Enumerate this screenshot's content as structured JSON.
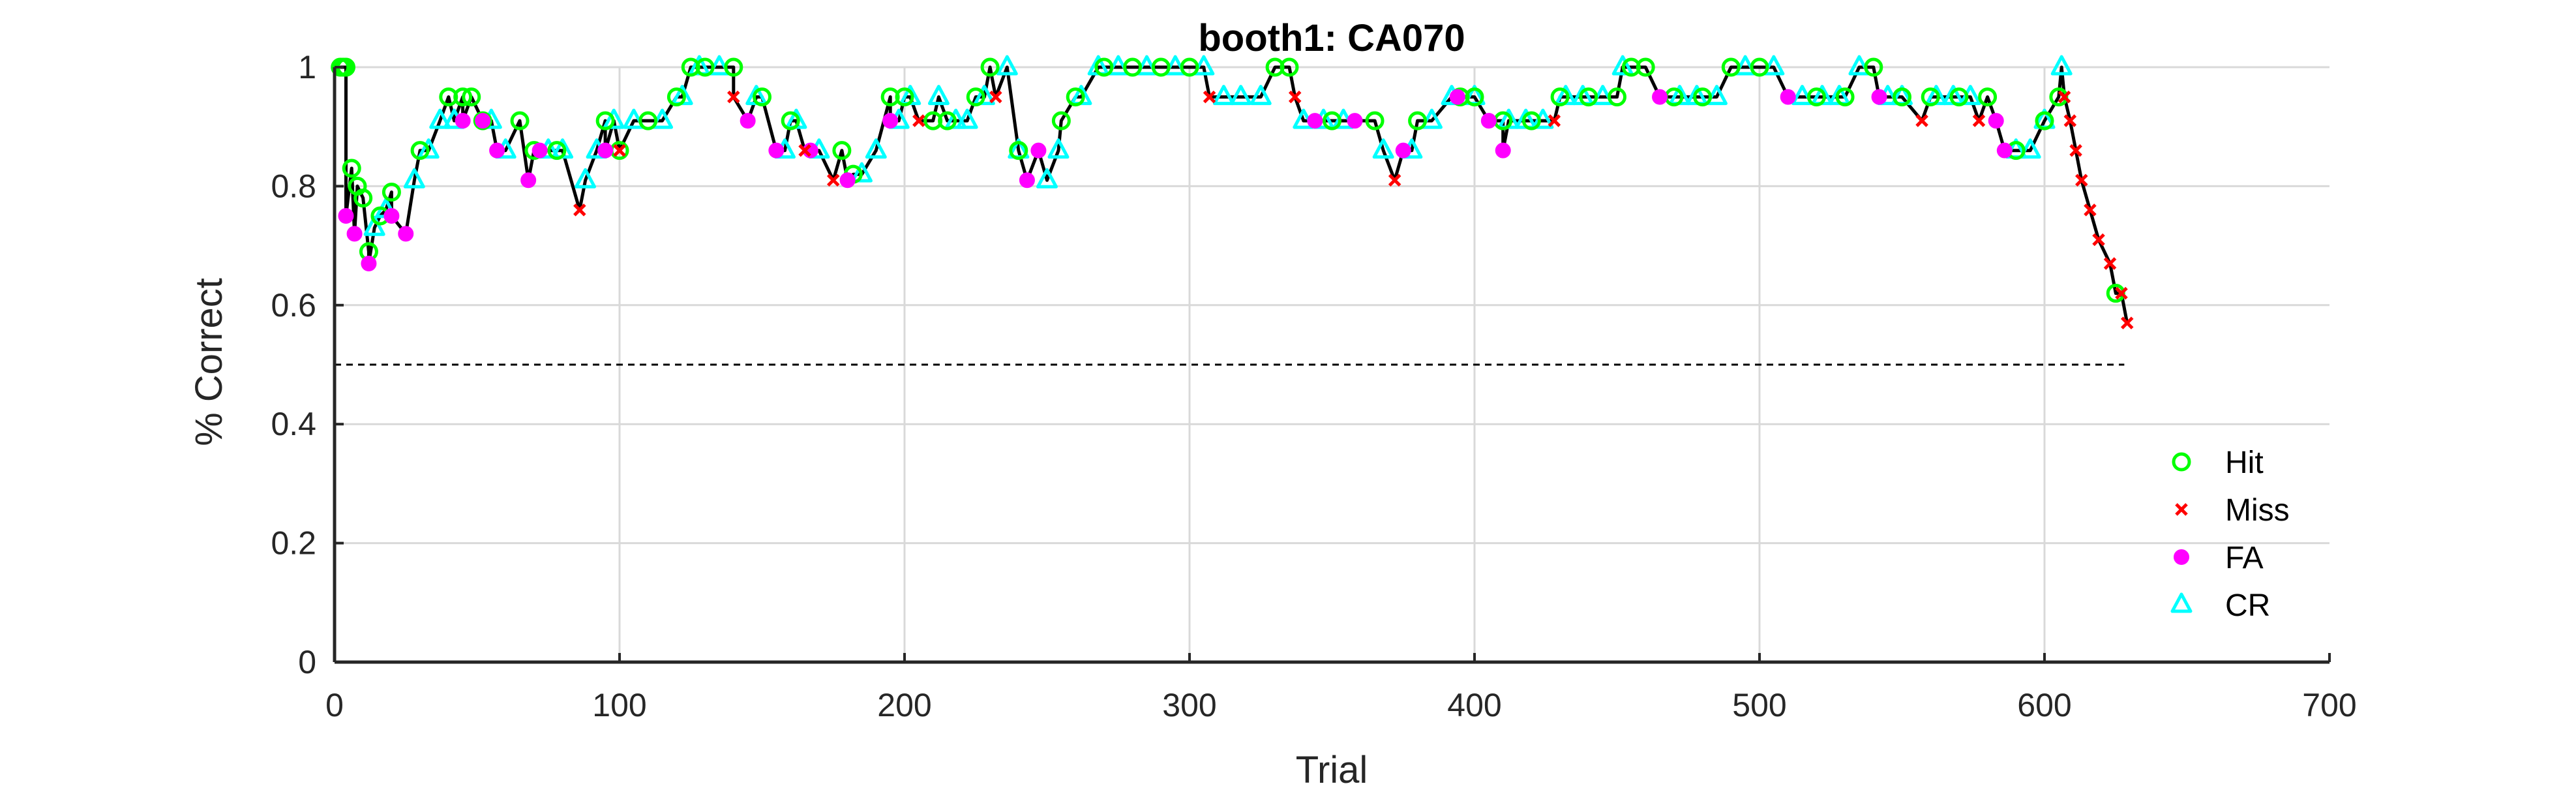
{
  "chart_data": {
    "type": "line",
    "title": "booth1: CA070",
    "xlabel": "Trial",
    "ylabel": "% Correct",
    "xlim": [
      0,
      700
    ],
    "ylim": [
      0,
      1
    ],
    "xticks": [
      0,
      100,
      200,
      300,
      400,
      500,
      600,
      700
    ],
    "yticks": [
      0,
      0.2,
      0.4,
      0.6,
      0.8,
      1
    ],
    "xtick_labels": [
      "0",
      "100",
      "200",
      "300",
      "400",
      "500",
      "600",
      "700"
    ],
    "ytick_labels": [
      "0",
      "0.2",
      "0.4",
      "0.6",
      "0.8",
      "1"
    ],
    "grid": true,
    "legend_location": "bottom-right",
    "colors": {
      "line": "#000000",
      "hit": "#00ff00",
      "miss": "#ff0000",
      "fa": "#ff00ff",
      "cr": "#00ffff",
      "chance": "#000000",
      "grid": "#d9d9d9",
      "axis": "#262626"
    },
    "chance_line": {
      "y": 0.5,
      "x": [
        0,
        628
      ]
    },
    "series": [
      {
        "name": "Hit",
        "marker": "circle",
        "x": [
          2,
          3,
          4,
          6,
          8,
          10,
          12,
          16,
          20,
          30,
          40,
          45,
          48,
          52,
          65,
          70,
          78,
          95,
          100,
          110,
          120,
          125,
          130,
          140,
          150,
          160,
          178,
          182,
          195,
          200,
          210,
          215,
          225,
          230,
          240,
          255,
          260,
          270,
          280,
          290,
          300,
          330,
          335,
          350,
          365,
          380,
          395,
          400,
          410,
          420,
          430,
          440,
          450,
          455,
          460,
          470,
          480,
          490,
          500,
          520,
          530,
          540,
          550,
          560,
          570,
          580,
          590,
          600,
          605,
          625
        ],
        "values": [
          1,
          1,
          1,
          0.83,
          0.8,
          0.78,
          0.69,
          0.75,
          0.79,
          0.86,
          0.95,
          0.95,
          0.95,
          0.91,
          0.91,
          0.86,
          0.86,
          0.91,
          0.86,
          0.91,
          0.95,
          1,
          1,
          1,
          0.95,
          0.91,
          0.86,
          0.82,
          0.95,
          0.95,
          0.91,
          0.91,
          0.95,
          1,
          0.86,
          0.91,
          0.95,
          1,
          1,
          1,
          1,
          1,
          1,
          0.91,
          0.91,
          0.91,
          0.95,
          0.95,
          0.91,
          0.91,
          0.95,
          0.95,
          0.95,
          1,
          1,
          0.95,
          0.95,
          1,
          1,
          0.95,
          0.95,
          1,
          0.95,
          0.95,
          0.95,
          0.95,
          0.86,
          0.91,
          0.95,
          0.62
        ]
      },
      {
        "name": "Miss",
        "marker": "x",
        "x": [
          86,
          100,
          140,
          165,
          175,
          205,
          232,
          307,
          337,
          372,
          428,
          557,
          577,
          607,
          609,
          611,
          613,
          616,
          619,
          623,
          627,
          629
        ],
        "values": [
          0.76,
          0.86,
          0.95,
          0.86,
          0.81,
          0.91,
          0.95,
          0.95,
          0.95,
          0.81,
          0.91,
          0.91,
          0.91,
          0.95,
          0.91,
          0.86,
          0.81,
          0.76,
          0.71,
          0.67,
          0.62,
          0.57
        ]
      },
      {
        "name": "FA",
        "marker": "dot",
        "x": [
          4,
          7,
          12,
          20,
          25,
          45,
          52,
          57,
          68,
          72,
          95,
          145,
          155,
          167,
          180,
          195,
          243,
          247,
          344,
          358,
          375,
          394,
          405,
          410,
          465,
          510,
          542,
          583,
          586
        ],
        "values": [
          0.75,
          0.72,
          0.67,
          0.75,
          0.72,
          0.91,
          0.91,
          0.86,
          0.81,
          0.86,
          0.86,
          0.91,
          0.86,
          0.86,
          0.81,
          0.91,
          0.81,
          0.86,
          0.91,
          0.91,
          0.86,
          0.95,
          0.91,
          0.86,
          0.95,
          0.95,
          0.95,
          0.91,
          0.86
        ]
      },
      {
        "name": "CR",
        "marker": "triangle",
        "x": [
          14,
          18,
          28,
          33,
          37,
          42,
          55,
          60,
          75,
          80,
          88,
          92,
          98,
          105,
          115,
          122,
          128,
          135,
          148,
          158,
          162,
          170,
          185,
          190,
          198,
          202,
          212,
          218,
          222,
          228,
          236,
          240,
          250,
          254,
          262,
          268,
          275,
          285,
          295,
          305,
          312,
          318,
          325,
          340,
          347,
          354,
          368,
          378,
          385,
          392,
          400,
          412,
          418,
          424,
          432,
          438,
          445,
          452,
          472,
          478,
          485,
          495,
          505,
          515,
          522,
          528,
          535,
          545,
          550,
          562,
          568,
          574,
          590,
          595,
          600,
          606
        ],
        "values": [
          0.73,
          0.76,
          0.81,
          0.86,
          0.91,
          0.91,
          0.91,
          0.86,
          0.86,
          0.86,
          0.81,
          0.86,
          0.91,
          0.91,
          0.91,
          0.95,
          1,
          1,
          0.95,
          0.86,
          0.91,
          0.86,
          0.82,
          0.86,
          0.91,
          0.95,
          0.95,
          0.91,
          0.91,
          0.95,
          1,
          0.86,
          0.81,
          0.86,
          0.95,
          1,
          1,
          1,
          1,
          1,
          0.95,
          0.95,
          0.95,
          0.91,
          0.91,
          0.91,
          0.86,
          0.86,
          0.91,
          0.95,
          0.95,
          0.91,
          0.91,
          0.91,
          0.95,
          0.95,
          0.95,
          1,
          0.95,
          0.95,
          0.95,
          1,
          1,
          0.95,
          0.95,
          0.95,
          1,
          0.95,
          0.95,
          0.95,
          0.95,
          0.95,
          0.86,
          0.86,
          0.91,
          1
        ]
      }
    ]
  }
}
